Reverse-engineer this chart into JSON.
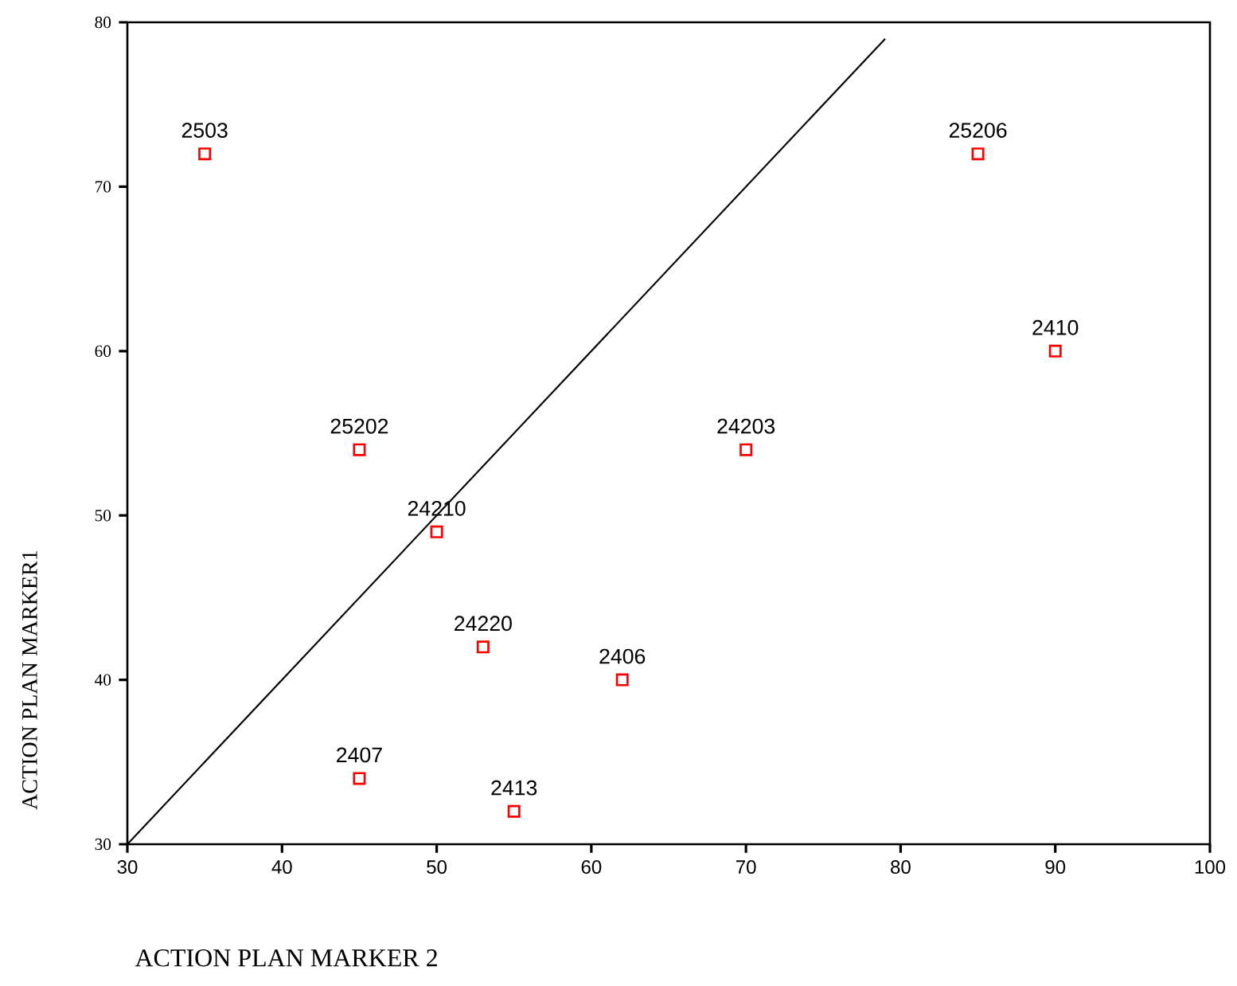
{
  "chart_data": {
    "type": "scatter",
    "xlabel": "ACTION PLAN MARKER 2",
    "ylabel": "ACTION PLAN MARKER1",
    "xlim": [
      30,
      100
    ],
    "ylim": [
      30,
      80
    ],
    "xticks": [
      30,
      40,
      50,
      60,
      70,
      80,
      90,
      100
    ],
    "yticks": [
      30,
      40,
      50,
      60,
      70,
      80
    ],
    "marker": "square",
    "series": [
      {
        "color": "#ff0000",
        "x": [
          35,
          85,
          90,
          45,
          70,
          50,
          53,
          62,
          45,
          55
        ],
        "values": [
          72,
          72,
          60,
          54,
          54,
          49,
          42,
          40,
          34,
          32
        ]
      },
      {
        "type": "line",
        "color": "#000000",
        "marker": "none",
        "x": [
          30,
          79
        ],
        "values": [
          30,
          79
        ]
      }
    ],
    "annotations": [
      {
        "text": "2503",
        "x": 35,
        "y": 72
      },
      {
        "text": "25206",
        "x": 85,
        "y": 72
      },
      {
        "text": "2410",
        "x": 90,
        "y": 60
      },
      {
        "text": "25202",
        "x": 45,
        "y": 54
      },
      {
        "text": "24203",
        "x": 70,
        "y": 54
      },
      {
        "text": "24210",
        "x": 50,
        "y": 49
      },
      {
        "text": "24220",
        "x": 53,
        "y": 42
      },
      {
        "text": "2406",
        "x": 62,
        "y": 40
      },
      {
        "text": "2407",
        "x": 45,
        "y": 34
      },
      {
        "text": "2413",
        "x": 55,
        "y": 32
      }
    ]
  }
}
